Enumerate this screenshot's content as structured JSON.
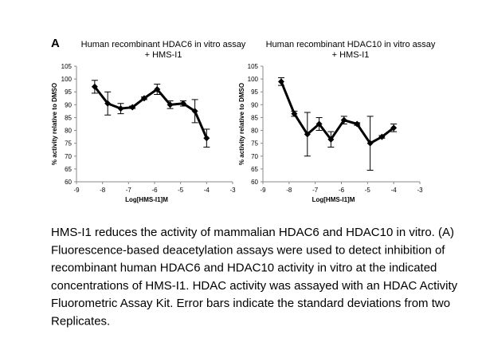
{
  "panel_label": "A",
  "chart_data": [
    {
      "type": "line",
      "title": [
        "Human recombinant HDAC6 in vitro assay",
        "+ HMS-I1"
      ],
      "x_label": "Log[HMS-I1]M",
      "y_label": "% activity relative to DMSO",
      "xlim": [
        -9,
        -3
      ],
      "xticks": [
        -9,
        -8,
        -7,
        -6,
        -5,
        -4,
        -3
      ],
      "ylim": [
        60,
        105
      ],
      "yticks": [
        60,
        65,
        70,
        75,
        80,
        85,
        90,
        95,
        100,
        105
      ],
      "series": [
        {
          "color": "#000000",
          "x": [
            -8.3,
            -7.8,
            -7.3,
            -6.85,
            -6.4,
            -5.9,
            -5.4,
            -4.9,
            -4.45,
            -4.0
          ],
          "values": [
            97,
            90.5,
            88.5,
            89,
            92.5,
            96,
            90,
            90.5,
            87.5,
            77
          ],
          "errors": [
            2.5,
            4.5,
            2,
            0.5,
            0.5,
            2,
            1.5,
            1,
            4.5,
            3.5
          ]
        }
      ]
    },
    {
      "type": "line",
      "title": [
        "Human recombinant HDAC10 in vitro assay",
        "+ HMS-I1"
      ],
      "x_label": "Log[HMS-I1]M",
      "y_label": "% activity relative to DMSO",
      "xlim": [
        -9,
        -3
      ],
      "xticks": [
        -9,
        -8,
        -7,
        -6,
        -5,
        -4,
        -3
      ],
      "ylim": [
        60,
        105
      ],
      "yticks": [
        60,
        65,
        70,
        75,
        80,
        85,
        90,
        95,
        100,
        105
      ],
      "series": [
        {
          "color": "#000000",
          "x": [
            -8.3,
            -7.8,
            -7.3,
            -6.85,
            -6.4,
            -5.9,
            -5.4,
            -4.9,
            -4.45,
            -4.0
          ],
          "values": [
            99,
            86.5,
            78.5,
            82.5,
            76.5,
            84,
            82.5,
            75,
            77.5,
            81
          ],
          "errors": [
            1.5,
            1,
            8.5,
            2.5,
            3,
            1.5,
            0.5,
            10.5,
            0.5,
            1.5
          ]
        }
      ]
    }
  ],
  "caption": [
    "HMS-I1 reduces the activity of mammalian HDAC6 and HDAC10 in vitro. (A)",
    "Fluorescence-based deacetylation assays were used to detect inhibition of",
    "recombinant human HDAC6 and HDAC10 activity in vitro at the indicated",
    "concentrations of HMS-I1. HDAC activity was assayed with an HDAC Activity",
    "Fluorometric Assay Kit. Error bars indicate the standard deviations from two",
    "Replicates."
  ]
}
